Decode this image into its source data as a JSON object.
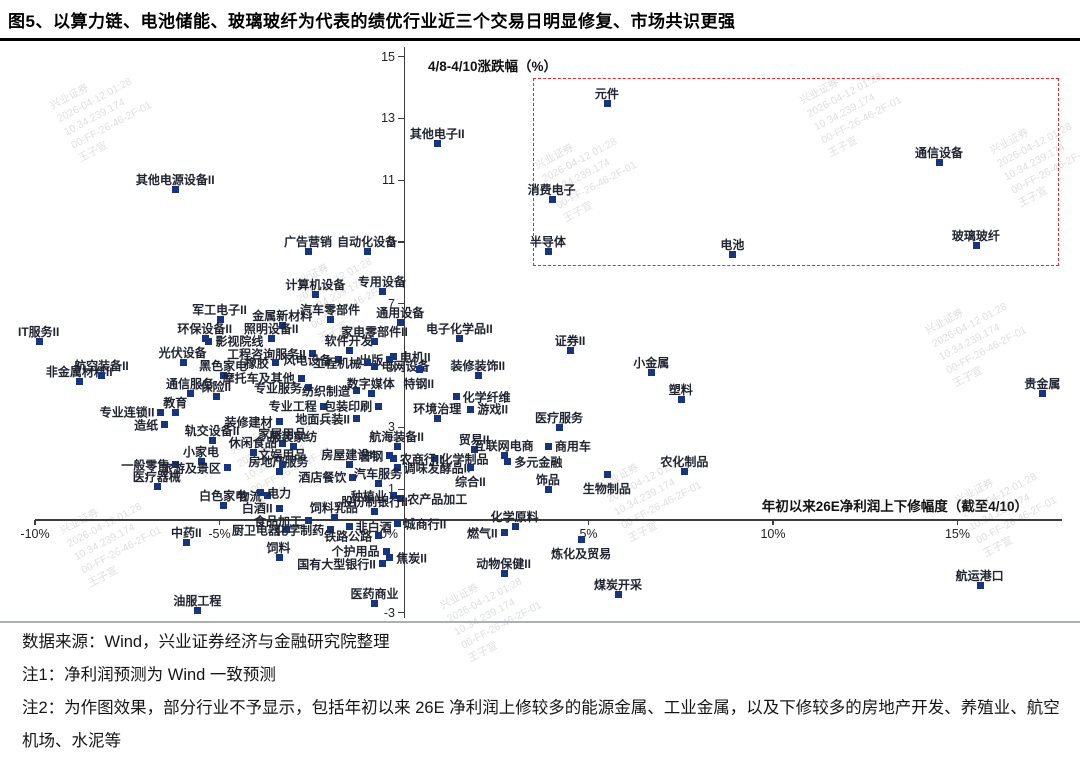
{
  "page": {
    "title": "图5、以算力链、电池储能、玻璃玻纤为代表的绩优行业近三个交易日明显修复、市场共识更强"
  },
  "footer": {
    "source": "数据来源：Wind，兴业证券经济与金融研究院整理",
    "note1": "注1：净利润预测为 Wind 一致预测",
    "note2": "注2：为作图效果，部分行业不予显示，包括年初以来 26E 净利润上修较多的能源金属、工业金属，以及下修较多的房地产开发、养殖业、航空机场、水泥等"
  },
  "watermark": {
    "lines": [
      "兴业证券",
      "2026-04-12 01:28",
      "10.34.239.174",
      "00-FF-26-46-2F-01",
      "王子宣"
    ]
  },
  "chart_data": {
    "type": "scatter",
    "y_axis_title": "4/8-4/10涨跌幅（%）",
    "x_axis_title": "年初以来26E净利润上下修幅度（截至4/10）",
    "x_unit": "%",
    "x_ticks": [
      -10,
      -5,
      0,
      5,
      10,
      15
    ],
    "y_ticks": [
      15,
      13,
      11,
      9,
      7,
      5,
      3,
      1,
      -3
    ],
    "x_range": [
      -10.5,
      18.3
    ],
    "y_range": [
      -3.3,
      15.3
    ],
    "grid": false,
    "point_color": "#17357e",
    "highlight_box": {
      "color": "#e02b2b",
      "x1": 3.5,
      "y1": 8.3,
      "x2": 17.7,
      "y2": 14.3
    },
    "points": [
      {
        "label": "元件",
        "x": 5.5,
        "y": 13.5
      },
      {
        "label": "其他电子II",
        "x": 0.9,
        "y": 12.2
      },
      {
        "label": "通信设备",
        "x": 14.5,
        "y": 11.6
      },
      {
        "label": "消费电子",
        "x": 4.0,
        "y": 10.4
      },
      {
        "label": "半导体",
        "x": 3.9,
        "y": 8.7
      },
      {
        "label": "电池",
        "x": 8.9,
        "y": 8.6
      },
      {
        "label": "玻璃玻纤",
        "x": 15.5,
        "y": 8.9
      },
      {
        "label": "其他电源设备II",
        "x": -6.2,
        "y": 10.7
      },
      {
        "label": "广告营销",
        "x": -2.6,
        "y": 8.7
      },
      {
        "label": "自动化设备",
        "x": -1.0,
        "y": 8.7
      },
      {
        "label": "计算机设备",
        "x": -2.4,
        "y": 7.3
      },
      {
        "label": "专用设备",
        "x": -0.6,
        "y": 7.4
      },
      {
        "label": "通用设备",
        "x": -0.1,
        "y": 6.4
      },
      {
        "label": "军工电子II",
        "x": -5.0,
        "y": 6.5
      },
      {
        "label": "金属新材料",
        "x": -3.3,
        "y": 6.3
      },
      {
        "label": "汽车零部件",
        "x": -2.0,
        "y": 6.5
      },
      {
        "label": "IT服务II",
        "x": -9.9,
        "y": 5.8
      },
      {
        "label": "环保设备II",
        "x": -5.4,
        "y": 5.9
      },
      {
        "label": "照明设备II",
        "x": -3.6,
        "y": 5.9
      },
      {
        "label": "影视院线",
        "x": -5.3,
        "y": 5.8,
        "lp": "right"
      },
      {
        "label": "家电零部件II",
        "x": -0.8,
        "y": 5.8
      },
      {
        "label": "光伏设备",
        "x": -6.0,
        "y": 5.1
      },
      {
        "label": "工程咨询服务II",
        "x": -2.5,
        "y": 5.4,
        "lp": "left"
      },
      {
        "label": "软件开发",
        "x": -1.5,
        "y": 5.5
      },
      {
        "label": "黑色家电",
        "x": -4.9,
        "y": 4.7
      },
      {
        "label": "橡胶",
        "x": -3.5,
        "y": 5.1,
        "lp": "left"
      },
      {
        "label": "风电设备",
        "x": -1.8,
        "y": 5.2,
        "lp": "left"
      },
      {
        "label": "出版",
        "x": -0.4,
        "y": 5.2,
        "lp": "left"
      },
      {
        "label": "电机II",
        "x": -0.3,
        "y": 5.3,
        "lp": "right"
      },
      {
        "label": "电网设备",
        "x": -0.8,
        "y": 5.0,
        "lp": "right"
      },
      {
        "label": "特钢II",
        "x": 0.4,
        "y": 4.9,
        "lp": "below"
      },
      {
        "label": "摩托车及其他",
        "x": -2.8,
        "y": 4.6,
        "lp": "left"
      },
      {
        "label": "工程机械",
        "x": -1.0,
        "y": 5.1,
        "lp": "left"
      },
      {
        "label": "非金属材料II",
        "x": -8.8,
        "y": 4.5
      },
      {
        "label": "航空装备II",
        "x": -8.2,
        "y": 4.7
      },
      {
        "label": "专业服务",
        "x": -2.6,
        "y": 4.3,
        "lp": "left"
      },
      {
        "label": "纺织制造",
        "x": -1.3,
        "y": 4.2,
        "lp": "left"
      },
      {
        "label": "数字媒体",
        "x": -0.9,
        "y": 4.1
      },
      {
        "label": "通信服务",
        "x": -5.8,
        "y": 4.1
      },
      {
        "label": "保险II",
        "x": -5.1,
        "y": 4.0
      },
      {
        "label": "电子化学品II",
        "x": 1.5,
        "y": 5.9
      },
      {
        "label": "证券II",
        "x": 4.5,
        "y": 5.5
      },
      {
        "label": "小金属",
        "x": 6.7,
        "y": 4.8
      },
      {
        "label": "塑料",
        "x": 7.5,
        "y": 3.9
      },
      {
        "label": "贵金属",
        "x": 17.3,
        "y": 4.1
      },
      {
        "label": "装修装饰II",
        "x": 2.0,
        "y": 4.7
      },
      {
        "label": "化学纤维",
        "x": 1.4,
        "y": 4.0,
        "lp": "right"
      },
      {
        "label": "游戏II",
        "x": 1.8,
        "y": 3.6,
        "lp": "right"
      },
      {
        "label": "环境治理",
        "x": 0.9,
        "y": 3.3
      },
      {
        "label": "专业连锁II",
        "x": -6.6,
        "y": 3.5,
        "lp": "left"
      },
      {
        "label": "教育",
        "x": -6.2,
        "y": 3.5
      },
      {
        "label": "造纸",
        "x": -6.5,
        "y": 3.1,
        "lp": "left"
      },
      {
        "label": "轨交设备II",
        "x": -5.2,
        "y": 2.6
      },
      {
        "label": "装修建材",
        "x": -3.4,
        "y": 3.2,
        "lp": "left"
      },
      {
        "label": "地面兵装II",
        "x": -1.3,
        "y": 3.3,
        "lp": "left"
      },
      {
        "label": "专业工程",
        "x": -2.2,
        "y": 3.7,
        "lp": "left"
      },
      {
        "label": "包装印刷",
        "x": -0.7,
        "y": 3.7,
        "lp": "left"
      },
      {
        "label": "医疗服务",
        "x": 4.2,
        "y": 3.0
      },
      {
        "label": "贸易II",
        "x": 1.9,
        "y": 2.3
      },
      {
        "label": "互联网电商",
        "x": 2.7,
        "y": 2.1
      },
      {
        "label": "商用车",
        "x": 3.9,
        "y": 2.4,
        "lp": "right"
      },
      {
        "label": "化学制品",
        "x": 0.8,
        "y": 2.0,
        "lp": "right"
      },
      {
        "label": "农商行II",
        "x": -0.3,
        "y": 2.0,
        "lp": "right"
      },
      {
        "label": "调味发酵品II",
        "x": -0.2,
        "y": 1.7,
        "lp": "right"
      },
      {
        "label": "多元金融",
        "x": 2.8,
        "y": 1.9,
        "lp": "right"
      },
      {
        "label": "综合II",
        "x": 1.8,
        "y": 1.7,
        "lp": "below"
      },
      {
        "label": "饰品",
        "x": 3.9,
        "y": 1.0
      },
      {
        "label": "生物制品",
        "x": 5.5,
        "y": 1.5,
        "lp": "below"
      },
      {
        "label": "农化制品",
        "x": 7.6,
        "y": 1.6
      },
      {
        "label": "小家电",
        "x": -5.5,
        "y": 1.9
      },
      {
        "label": "一般零售",
        "x": -6.2,
        "y": 1.8,
        "lp": "left"
      },
      {
        "label": "旅游及景区",
        "x": -4.8,
        "y": 1.7,
        "lp": "left"
      },
      {
        "label": "房地产服务",
        "x": -3.4,
        "y": 1.6
      },
      {
        "label": "家居用品",
        "x": -3.3,
        "y": 2.5
      },
      {
        "label": "服装家纺",
        "x": -3.0,
        "y": 2.4
      },
      {
        "label": "休闲食品",
        "x": -4.1,
        "y": 2.2
      },
      {
        "label": "航海装备II",
        "x": -0.2,
        "y": 2.4
      },
      {
        "label": "普钢",
        "x": -0.4,
        "y": 2.1,
        "lp": "left"
      },
      {
        "label": "房屋建设II",
        "x": -1.5,
        "y": 1.8
      },
      {
        "label": "文娱用品",
        "x": -3.3,
        "y": 1.8
      },
      {
        "label": "酒店餐饮",
        "x": -1.4,
        "y": 1.4,
        "lp": "left"
      },
      {
        "label": "汽车服务",
        "x": -0.7,
        "y": 1.2
      },
      {
        "label": "种植业",
        "x": -0.3,
        "y": 0.8,
        "lp": "left"
      },
      {
        "label": "农产品加工",
        "x": -0.1,
        "y": 0.7,
        "lp": "right"
      },
      {
        "label": "医疗器械",
        "x": -6.7,
        "y": 1.1
      },
      {
        "label": "白色家电",
        "x": -4.9,
        "y": 0.5
      },
      {
        "label": "物流",
        "x": -3.7,
        "y": 0.8,
        "lp": "left"
      },
      {
        "label": "电力",
        "x": -3.9,
        "y": 0.9,
        "lp": "right"
      },
      {
        "label": "白酒II",
        "x": -3.4,
        "y": 0.4,
        "lp": "left"
      },
      {
        "label": "股份制银行II",
        "x": -0.8,
        "y": 0.3
      },
      {
        "label": "食品加工",
        "x": -2.6,
        "y": 0.0,
        "lp": "left"
      },
      {
        "label": "饲料乳品",
        "x": -1.9,
        "y": 0.1
      },
      {
        "label": "非白酒",
        "x": -1.5,
        "y": -0.2,
        "lp": "right"
      },
      {
        "label": "城商行II",
        "x": -0.2,
        "y": -0.1,
        "lp": "right"
      },
      {
        "label": "厨卫电器",
        "x": -3.2,
        "y": -0.3,
        "lp": "left"
      },
      {
        "label": "化学制药",
        "x": -2.0,
        "y": -0.3,
        "lp": "left"
      },
      {
        "label": "铁路公路",
        "x": -0.7,
        "y": -0.5,
        "lp": "left"
      },
      {
        "label": "中药II",
        "x": -5.9,
        "y": -0.7
      },
      {
        "label": "饲料",
        "x": -3.4,
        "y": -1.2
      },
      {
        "label": "个护用品",
        "x": -0.5,
        "y": -1.0,
        "lp": "left"
      },
      {
        "label": "焦炭II",
        "x": -0.4,
        "y": -1.2,
        "lp": "right"
      },
      {
        "label": "国有大型银行II",
        "x": -0.6,
        "y": -1.4,
        "lp": "left"
      },
      {
        "label": "燃气II",
        "x": 2.7,
        "y": -0.4,
        "lp": "left"
      },
      {
        "label": "化学原料",
        "x": 3.0,
        "y": -0.2
      },
      {
        "label": "炼化及贸易",
        "x": 4.8,
        "y": -0.6,
        "lp": "below"
      },
      {
        "label": "动物保健II",
        "x": 2.7,
        "y": -1.7
      },
      {
        "label": "煤炭开采",
        "x": 5.8,
        "y": -2.4
      },
      {
        "label": "医药商业",
        "x": -0.8,
        "y": -2.7
      },
      {
        "label": "油服工程",
        "x": -5.6,
        "y": -2.9
      },
      {
        "label": "航运港口",
        "x": 15.6,
        "y": -2.1
      }
    ]
  }
}
